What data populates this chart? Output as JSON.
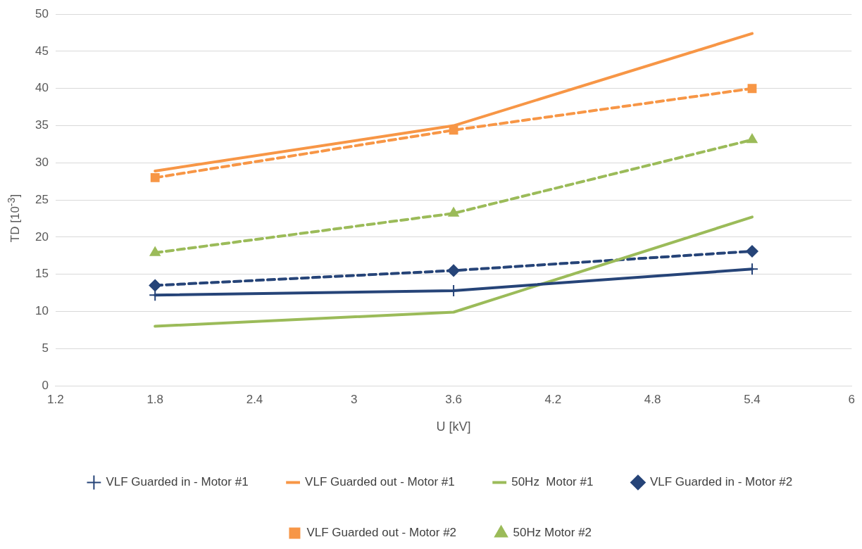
{
  "chart_data": {
    "type": "line",
    "xlabel": "U [kV]",
    "ylabel": "TD [10$^{-3}$]",
    "x": [
      1.8,
      3.6,
      5.4
    ],
    "xlim": [
      1.2,
      6
    ],
    "xticks": [
      1.2,
      1.8,
      2.4,
      3,
      3.6,
      4.2,
      4.8,
      5.4,
      6
    ],
    "ylim": [
      0,
      50
    ],
    "yticks": [
      0,
      5,
      10,
      15,
      20,
      25,
      30,
      35,
      40,
      45,
      50
    ],
    "grid": "y",
    "legend": "bottom",
    "series": [
      {
        "name": "VLF Guarded in - Motor #1",
        "color": "#264478",
        "marker": "cross",
        "line_style": "solid",
        "values": [
          12.2,
          12.8,
          15.7
        ]
      },
      {
        "name": "VLF Guarded out - Motor #1",
        "color": "#f79646",
        "marker": "none",
        "line_style": "solid",
        "values": [
          28.9,
          35.0,
          47.4
        ]
      },
      {
        "name": "50Hz  Motor #1",
        "color": "#9bbb59",
        "marker": "none",
        "line_style": "solid",
        "values": [
          8.0,
          9.9,
          22.7
        ]
      },
      {
        "name": "VLF Guarded in - Motor #2",
        "color": "#264478",
        "marker": "diamond",
        "line_style": "dashed",
        "values": [
          13.5,
          15.5,
          18.1
        ]
      },
      {
        "name": "VLF Guarded out - Motor #2",
        "color": "#f79646",
        "marker": "square",
        "line_style": "dashed",
        "values": [
          28.0,
          34.4,
          40.0
        ]
      },
      {
        "name": "50Hz Motor #2",
        "color": "#9bbb59",
        "marker": "triangle",
        "line_style": "dashed",
        "values": [
          17.9,
          23.2,
          33.1
        ]
      }
    ]
  }
}
